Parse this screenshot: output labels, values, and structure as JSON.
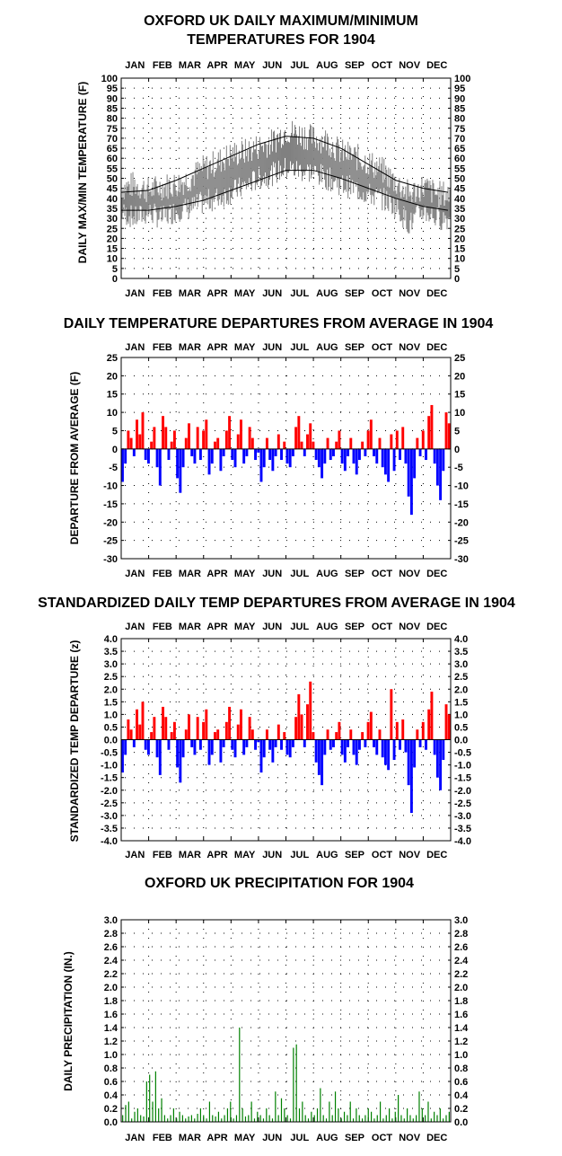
{
  "months": [
    "JAN",
    "FEB",
    "MAR",
    "APR",
    "MAY",
    "JUN",
    "JUL",
    "AUG",
    "SEP",
    "OCT",
    "NOV",
    "DEC"
  ],
  "colors": {
    "positive": "#ff0000",
    "negative": "#0000ff",
    "daily_range": "#808080",
    "normal_line": "#000000",
    "precip": "#008000"
  },
  "chart_data": [
    {
      "type": "area",
      "title": "OXFORD UK DAILY MAXIMUM/MINIMUM",
      "subtitle": "TEMPERATURES FOR 1904",
      "ylabel": "DAILY MAX/MIN TEMPERATURE (F)",
      "ylim": [
        0,
        100
      ],
      "yticks": [
        "0",
        "5",
        "10",
        "15",
        "20",
        "25",
        "30",
        "35",
        "40",
        "45",
        "50",
        "55",
        "60",
        "65",
        "70",
        "75",
        "80",
        "85",
        "90",
        "95",
        "100"
      ],
      "grid": "dotted",
      "series": [
        {
          "name": "",
          "kind": "daily_max_min_band",
          "x_month": [
            1,
            1.5,
            2,
            2.5,
            3,
            3.5,
            4,
            4.5,
            5,
            5.5,
            6,
            6.5,
            7,
            7.5,
            8,
            8.5,
            9,
            9.5,
            10,
            10.5,
            11,
            11.5,
            12,
            12.5
          ],
          "max": [
            45,
            47,
            44,
            46,
            47,
            50,
            55,
            58,
            62,
            63,
            66,
            68,
            74,
            72,
            70,
            69,
            63,
            61,
            58,
            54,
            48,
            42,
            46,
            42
          ],
          "min": [
            33,
            30,
            33,
            30,
            34,
            35,
            38,
            40,
            43,
            46,
            50,
            52,
            55,
            54,
            53,
            50,
            47,
            45,
            42,
            40,
            36,
            27,
            34,
            30
          ]
        },
        {
          "name": "",
          "kind": "normal_max",
          "x_month": [
            1,
            2,
            3,
            4,
            5,
            6,
            7,
            8,
            9,
            10,
            11,
            12,
            12.9
          ],
          "values": [
            43,
            44,
            49,
            55,
            61,
            67,
            71,
            70,
            65,
            57,
            49,
            45,
            43
          ]
        },
        {
          "name": "",
          "kind": "normal_min",
          "x_month": [
            1,
            2,
            3,
            4,
            5,
            6,
            7,
            8,
            9,
            10,
            11,
            12,
            12.9
          ],
          "values": [
            34,
            34,
            36,
            39,
            44,
            49,
            54,
            54,
            50,
            45,
            40,
            36,
            34
          ]
        }
      ]
    },
    {
      "type": "bar",
      "title": "DAILY TEMPERATURE DEPARTURES FROM AVERAGE IN 1904",
      "ylabel": "DEPARTURE FROM AVERAGE (F)",
      "ylim": [
        -30,
        25
      ],
      "yticks": [
        "-30",
        "-25",
        "-20",
        "-15",
        "-10",
        "-5",
        "0",
        "5",
        "10",
        "15",
        "20",
        "25"
      ],
      "grid": "dotted",
      "values": [
        -9,
        -4,
        5,
        3,
        -2,
        8,
        4,
        10,
        -3,
        -4,
        2,
        6,
        -5,
        -10,
        9,
        6,
        -3,
        2,
        5,
        -8,
        -12,
        -5,
        3,
        7,
        -2,
        -4,
        6,
        -3,
        5,
        8,
        -7,
        -4,
        2,
        3,
        -6,
        -2,
        5,
        9,
        -3,
        -5,
        4,
        8,
        -4,
        -2,
        6,
        3,
        -3,
        -1,
        -9,
        -5,
        3,
        -3,
        -6,
        -2,
        4,
        -3,
        2,
        -4,
        -5,
        -2,
        6,
        9,
        2,
        -2,
        4,
        7,
        2,
        -3,
        -5,
        -8,
        -4,
        3,
        -3,
        -2,
        2,
        5,
        -4,
        -6,
        -2,
        3,
        -4,
        -7,
        -3,
        2,
        -2,
        5,
        8,
        -2,
        -4,
        3,
        -5,
        -7,
        -9,
        4,
        -6,
        5,
        -3,
        6,
        -4,
        -13,
        -18,
        -8,
        3,
        -2,
        5,
        -3,
        9,
        12,
        -4,
        -10,
        -14,
        -6,
        10,
        7
      ]
    },
    {
      "type": "bar",
      "title": "STANDARDIZED DAILY TEMP DEPARTURES FROM AVERAGE IN 1904",
      "ylabel": "STANDARDIZED TEMP DEPARTURE (z)",
      "ylim": [
        -4.0,
        4.0
      ],
      "yticks": [
        "-4.0",
        "-3.5",
        "-3.0",
        "-2.5",
        "-2.0",
        "-1.5",
        "-1.0",
        "-0.5",
        "0.0",
        "0.5",
        "1.0",
        "1.5",
        "2.0",
        "2.5",
        "3.0",
        "3.5",
        "4.0"
      ],
      "grid": "dotted",
      "values": [
        -1.3,
        -0.6,
        0.8,
        0.4,
        -0.3,
        1.2,
        0.6,
        1.5,
        -0.4,
        -0.6,
        0.3,
        0.9,
        -0.7,
        -1.4,
        1.3,
        0.9,
        -0.4,
        0.3,
        0.7,
        -1.1,
        -1.7,
        -0.7,
        0.4,
        1.0,
        -0.3,
        -0.6,
        0.9,
        -0.4,
        0.7,
        1.2,
        -1.0,
        -0.6,
        0.3,
        0.4,
        -0.9,
        -0.3,
        0.7,
        1.3,
        -0.4,
        -0.7,
        0.6,
        1.2,
        -0.6,
        -0.3,
        0.9,
        0.4,
        -0.4,
        -0.1,
        -1.3,
        -0.7,
        0.4,
        -0.4,
        -0.9,
        -0.3,
        0.6,
        -0.4,
        0.3,
        -0.6,
        -0.7,
        -0.3,
        0.9,
        1.8,
        1.0,
        -0.3,
        1.4,
        2.3,
        0.3,
        -0.9,
        -1.4,
        -1.8,
        -0.6,
        0.4,
        -0.4,
        -0.3,
        0.3,
        0.7,
        -0.6,
        -0.9,
        -0.3,
        0.4,
        -0.6,
        -1.0,
        -0.4,
        0.3,
        -0.3,
        0.7,
        1.1,
        -0.3,
        -0.6,
        0.4,
        -0.7,
        -1.0,
        -1.2,
        2.0,
        -0.8,
        0.7,
        -0.4,
        0.8,
        -0.5,
        -1.8,
        -2.9,
        -1.1,
        0.4,
        -0.3,
        0.7,
        -0.4,
        1.2,
        1.9,
        -0.6,
        -1.5,
        -2.0,
        -0.8,
        1.4,
        1.0
      ]
    },
    {
      "type": "bar",
      "title": "OXFORD UK PRECIPITATION FOR 1904",
      "ylabel": "DAILY PRECIPITATION (IN.)",
      "ylim": [
        0,
        3.0
      ],
      "yticks": [
        "0.0",
        "0.2",
        "0.4",
        "0.6",
        "0.8",
        "1.0",
        "1.2",
        "1.4",
        "1.6",
        "1.8",
        "2.0",
        "2.2",
        "2.4",
        "2.6",
        "2.8",
        "3.0"
      ],
      "grid": "dotted",
      "values": [
        0.1,
        0.25,
        0.3,
        0.05,
        0.15,
        0.2,
        0.1,
        0.08,
        0.6,
        0.7,
        0.3,
        0.75,
        0.2,
        0.35,
        0.1,
        0.05,
        0.1,
        0.2,
        0.05,
        0.15,
        0.1,
        0.05,
        0.08,
        0.1,
        0.05,
        0.12,
        0.2,
        0.1,
        0.05,
        0.3,
        0.1,
        0.08,
        0.15,
        0.05,
        0.1,
        0.2,
        0.3,
        0.05,
        0.1,
        1.4,
        0.2,
        0.08,
        0.1,
        0.3,
        0.05,
        0.15,
        0.1,
        0.05,
        0.2,
        0.1,
        0.05,
        0.45,
        0.1,
        0.35,
        0.2,
        0.1,
        0.05,
        1.1,
        1.15,
        0.2,
        0.3,
        0.1,
        0.05,
        0.15,
        0.1,
        0.2,
        0.5,
        0.1,
        0.05,
        0.3,
        0.1,
        0.45,
        0.2,
        0.05,
        0.15,
        0.1,
        0.3,
        0.05,
        0.2,
        0.1,
        0.05,
        0.1,
        0.2,
        0.15,
        0.05,
        0.1,
        0.3,
        0.05,
        0.1,
        0.2,
        0.05,
        0.15,
        0.4,
        0.1,
        0.05,
        0.2,
        0.1,
        0.05,
        0.1,
        0.45,
        0.2,
        0.1,
        0.3,
        0.05,
        0.15,
        0.1,
        0.2,
        0.05,
        0.1,
        0.15
      ]
    }
  ]
}
